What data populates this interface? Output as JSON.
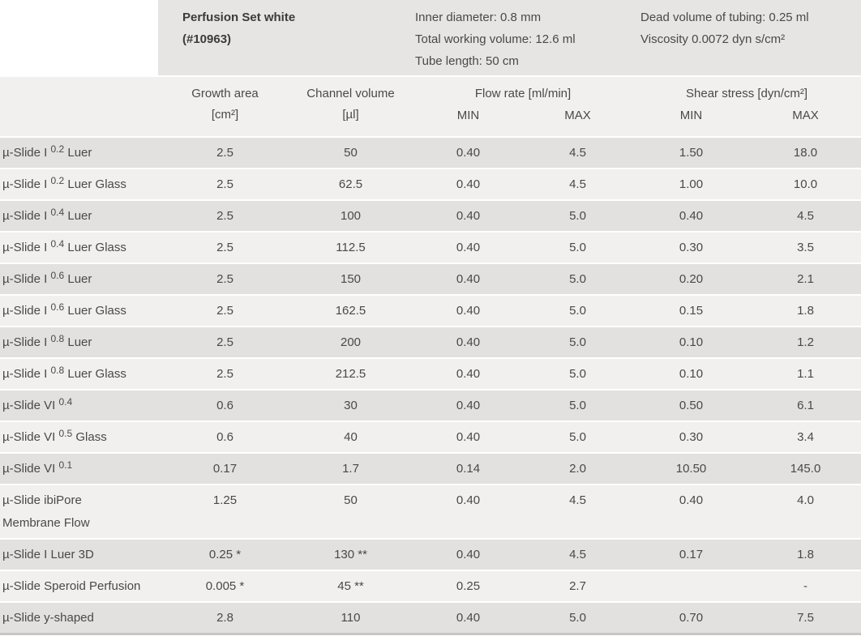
{
  "product": {
    "title_line1": "Perfusion Set white",
    "title_line2": "(#10963)",
    "specs_col1": [
      "Inner diameter: 0.8 mm",
      "Total working volume: 12.6 ml",
      "Tube length: 50 cm"
    ],
    "specs_col2": [
      "Dead volume of tubing: 0.25 ml",
      "Viscosity 0.0072 dyn s/cm²"
    ]
  },
  "table": {
    "headers": {
      "growth_line1": "Growth area",
      "growth_line2": "[cm²]",
      "channel_line1": "Channel volume",
      "channel_line2": "[µl]",
      "flow": "Flow rate [ml/min]",
      "shear": "Shear stress [dyn/cm²]",
      "min": "MIN",
      "max": "MAX"
    },
    "rows": [
      {
        "name_pre": "µ-Slide I ",
        "name_sup": "0.2",
        "name_post": " Luer",
        "name_line2": "",
        "growth": "2.5",
        "channel": "50",
        "flow_min": "0.40",
        "flow_max": "4.5",
        "shear_min": "1.50",
        "shear_max": "18.0"
      },
      {
        "name_pre": "µ-Slide I ",
        "name_sup": "0.2",
        "name_post": " Luer Glass",
        "name_line2": "",
        "growth": "2.5",
        "channel": "62.5",
        "flow_min": "0.40",
        "flow_max": "4.5",
        "shear_min": "1.00",
        "shear_max": "10.0"
      },
      {
        "name_pre": "µ-Slide I ",
        "name_sup": "0.4",
        "name_post": " Luer",
        "name_line2": "",
        "growth": "2.5",
        "channel": "100",
        "flow_min": "0.40",
        "flow_max": "5.0",
        "shear_min": "0.40",
        "shear_max": "4.5"
      },
      {
        "name_pre": "µ-Slide I ",
        "name_sup": "0.4",
        "name_post": " Luer Glass",
        "name_line2": "",
        "growth": "2.5",
        "channel": "112.5",
        "flow_min": "0.40",
        "flow_max": "5.0",
        "shear_min": "0.30",
        "shear_max": "3.5"
      },
      {
        "name_pre": "µ-Slide I ",
        "name_sup": "0.6",
        "name_post": " Luer",
        "name_line2": "",
        "growth": "2.5",
        "channel": "150",
        "flow_min": "0.40",
        "flow_max": "5.0",
        "shear_min": "0.20",
        "shear_max": "2.1"
      },
      {
        "name_pre": "µ-Slide I ",
        "name_sup": "0.6",
        "name_post": " Luer Glass",
        "name_line2": "",
        "growth": "2.5",
        "channel": "162.5",
        "flow_min": "0.40",
        "flow_max": "5.0",
        "shear_min": "0.15",
        "shear_max": "1.8"
      },
      {
        "name_pre": "µ-Slide I ",
        "name_sup": "0.8",
        "name_post": " Luer",
        "name_line2": "",
        "growth": "2.5",
        "channel": "200",
        "flow_min": "0.40",
        "flow_max": "5.0",
        "shear_min": "0.10",
        "shear_max": "1.2"
      },
      {
        "name_pre": "µ-Slide I ",
        "name_sup": "0.8",
        "name_post": " Luer Glass",
        "name_line2": "",
        "growth": "2.5",
        "channel": "212.5",
        "flow_min": "0.40",
        "flow_max": "5.0",
        "shear_min": "0.10",
        "shear_max": "1.1"
      },
      {
        "name_pre": "µ-Slide VI ",
        "name_sup": "0.4",
        "name_post": "",
        "name_line2": "",
        "growth": "0.6",
        "channel": "30",
        "flow_min": "0.40",
        "flow_max": "5.0",
        "shear_min": "0.50",
        "shear_max": "6.1"
      },
      {
        "name_pre": "µ-Slide VI ",
        "name_sup": "0.5",
        "name_post": " Glass",
        "name_line2": "",
        "growth": "0.6",
        "channel": "40",
        "flow_min": "0.40",
        "flow_max": "5.0",
        "shear_min": "0.30",
        "shear_max": "3.4"
      },
      {
        "name_pre": "µ-Slide VI ",
        "name_sup": "0.1",
        "name_post": "",
        "name_line2": "",
        "growth": "0.17",
        "channel": "1.7",
        "flow_min": "0.14",
        "flow_max": "2.0",
        "shear_min": "10.50",
        "shear_max": "145.0"
      },
      {
        "name_pre": "µ-Slide ibiPore",
        "name_sup": "",
        "name_post": "",
        "name_line2": "Membrane Flow",
        "growth": "1.25",
        "channel": "50",
        "flow_min": "0.40",
        "flow_max": "4.5",
        "shear_min": "0.40",
        "shear_max": "4.0"
      },
      {
        "name_pre": "µ-Slide I Luer 3D",
        "name_sup": "",
        "name_post": "",
        "name_line2": "",
        "growth": "0.25 *",
        "channel": "130 **",
        "flow_min": "0.40",
        "flow_max": "4.5",
        "shear_min": "0.17",
        "shear_max": "1.8"
      },
      {
        "name_pre": "µ-Slide Speroid Perfusion",
        "name_sup": "",
        "name_post": "",
        "name_line2": "",
        "growth": "0.005 *",
        "channel": "45 **",
        "flow_min": "0.25",
        "flow_max": "2.7",
        "shear_min": "",
        "shear_max": "-"
      },
      {
        "name_pre": "µ-Slide y-shaped",
        "name_sup": "",
        "name_post": "",
        "name_line2": "",
        "growth": "2.8",
        "channel": "110",
        "flow_min": "0.40",
        "flow_max": "5.0",
        "shear_min": "0.70",
        "shear_max": "7.5"
      }
    ]
  },
  "colors": {
    "info_panel_bg": "#e7e5e3",
    "header_band_bg": "#f1f0ef",
    "row_dark_bg": "#e2e1e0",
    "row_light_bg": "#f1f0ef",
    "bottom_border": "#c7c4c1",
    "text": "#4a4947"
  }
}
